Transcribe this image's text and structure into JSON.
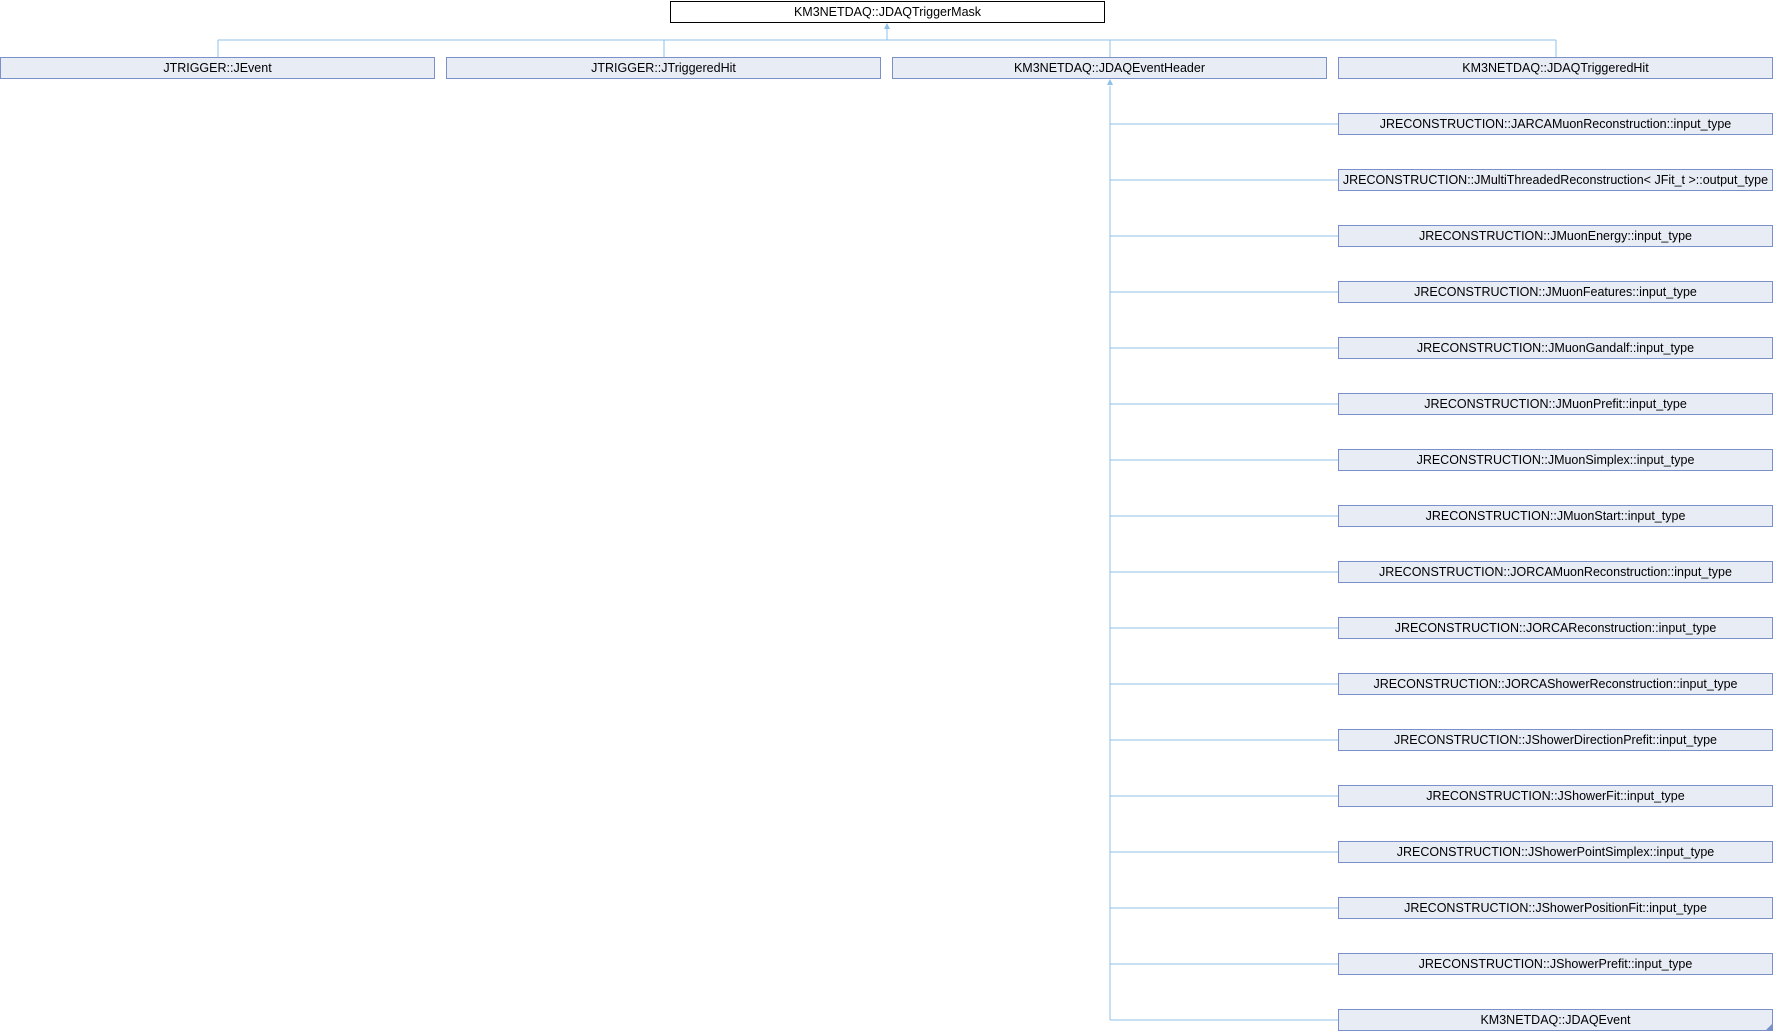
{
  "diagram": {
    "root": "KM3NETDAQ::JDAQTriggerMask",
    "children": [
      "JTRIGGER::JEvent",
      "JTRIGGER::JTriggeredHit",
      "KM3NETDAQ::JDAQEventHeader",
      "KM3NETDAQ::JDAQTriggeredHit"
    ],
    "header_children": [
      "JRECONSTRUCTION::JARCAMuonReconstruction::input_type",
      "JRECONSTRUCTION::JMultiThreadedReconstruction< JFit_t >::output_type",
      "JRECONSTRUCTION::JMuonEnergy::input_type",
      "JRECONSTRUCTION::JMuonFeatures::input_type",
      "JRECONSTRUCTION::JMuonGandalf::input_type",
      "JRECONSTRUCTION::JMuonPrefit::input_type",
      "JRECONSTRUCTION::JMuonSimplex::input_type",
      "JRECONSTRUCTION::JMuonStart::input_type",
      "JRECONSTRUCTION::JORCAMuonReconstruction::input_type",
      "JRECONSTRUCTION::JORCAReconstruction::input_type",
      "JRECONSTRUCTION::JORCAShowerReconstruction::input_type",
      "JRECONSTRUCTION::JShowerDirectionPrefit::input_type",
      "JRECONSTRUCTION::JShowerFit::input_type",
      "JRECONSTRUCTION::JShowerPointSimplex::input_type",
      "JRECONSTRUCTION::JShowerPositionFit::input_type",
      "JRECONSTRUCTION::JShowerPrefit::input_type",
      "KM3NETDAQ::JDAQEvent"
    ],
    "colors": {
      "edge": "#8fc0e8",
      "node_border": "#7b8fc8",
      "node_fill": "#e8ecf5"
    }
  }
}
